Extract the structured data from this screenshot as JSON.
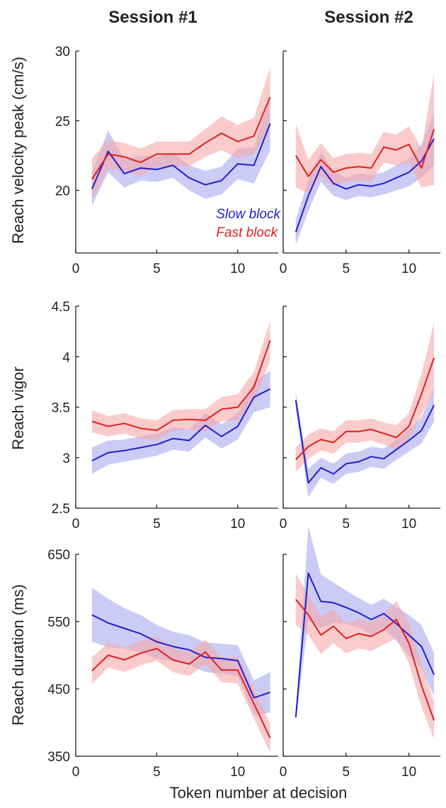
{
  "colors": {
    "slow": "#1f1fcc",
    "fast": "#e02020",
    "slow_band": "#a8a8f0",
    "fast_band": "#f6a8a8"
  },
  "headers": {
    "col1": "Session #1",
    "col2": "Session #2"
  },
  "xlabel": "Token number at decision",
  "legend": {
    "slow": "Slow block",
    "fast": "Fast block",
    "placement": "inside top-left panel, lower-right"
  },
  "chart_data": [
    {
      "type": "line",
      "title": "Session #1",
      "ylabel": "Reach velocity peak (cm/s)",
      "xlim": [
        0,
        12.5
      ],
      "xticks": [
        0,
        5,
        10
      ],
      "ylim": [
        15.5,
        30
      ],
      "yticks": [
        20,
        25,
        30
      ],
      "x": [
        1,
        2,
        3,
        4,
        5,
        6,
        7,
        8,
        9,
        10,
        11,
        12
      ],
      "series": [
        {
          "name": "Slow block",
          "values": [
            20.1,
            22.8,
            21.2,
            21.6,
            21.5,
            21.8,
            20.9,
            20.4,
            20.7,
            21.9,
            21.8,
            24.8
          ],
          "band": [
            1.2,
            1.5,
            1.0,
            0.9,
            0.9,
            0.9,
            0.9,
            1.0,
            1.0,
            1.1,
            1.3,
            1.9
          ]
        },
        {
          "name": "Fast block",
          "values": [
            20.8,
            22.6,
            22.4,
            22.0,
            22.6,
            22.6,
            22.6,
            23.4,
            24.1,
            23.5,
            23.9,
            26.7
          ],
          "band": [
            1.5,
            1.0,
            1.0,
            1.0,
            0.9,
            0.9,
            0.9,
            1.0,
            1.2,
            1.2,
            1.3,
            2.1
          ]
        }
      ]
    },
    {
      "type": "line",
      "title": "Session #2",
      "ylabel": "",
      "xlim": [
        0,
        12.5
      ],
      "xticks": [
        0,
        5,
        10
      ],
      "ylim": [
        15.5,
        30
      ],
      "yticks": [],
      "x": [
        1,
        2,
        3,
        4,
        5,
        6,
        7,
        8,
        9,
        10,
        11,
        12
      ],
      "series": [
        {
          "name": "Slow block",
          "values": [
            17.0,
            19.6,
            21.7,
            20.5,
            20.1,
            20.4,
            20.3,
            20.5,
            20.9,
            21.3,
            22.1,
            23.7
          ],
          "band": [
            0.9,
            1.1,
            1.1,
            0.9,
            0.8,
            0.8,
            0.8,
            0.8,
            0.9,
            1.0,
            1.2,
            1.9
          ]
        },
        {
          "name": "Fast block",
          "values": [
            22.5,
            21.0,
            22.2,
            21.3,
            21.6,
            21.7,
            21.6,
            23.1,
            22.9,
            23.3,
            21.6,
            24.4
          ],
          "band": [
            2.3,
            1.2,
            1.2,
            1.0,
            1.0,
            1.0,
            1.0,
            1.1,
            1.1,
            1.3,
            1.4,
            4.0
          ]
        }
      ]
    },
    {
      "type": "line",
      "title": "",
      "ylabel": "Reach vigor",
      "xlim": [
        0,
        12.5
      ],
      "xticks": [
        0,
        5,
        10
      ],
      "ylim": [
        2.5,
        4.5
      ],
      "yticks": [
        2.5,
        3,
        3.5,
        4,
        4.5
      ],
      "x": [
        1,
        2,
        3,
        4,
        5,
        6,
        7,
        8,
        9,
        10,
        11,
        12
      ],
      "series": [
        {
          "name": "Slow block",
          "values": [
            2.97,
            3.05,
            3.07,
            3.1,
            3.13,
            3.19,
            3.17,
            3.32,
            3.21,
            3.31,
            3.6,
            3.68
          ],
          "band": [
            0.13,
            0.12,
            0.11,
            0.11,
            0.11,
            0.11,
            0.11,
            0.12,
            0.12,
            0.13,
            0.15,
            0.18
          ]
        },
        {
          "name": "Fast block",
          "values": [
            3.36,
            3.31,
            3.34,
            3.29,
            3.27,
            3.37,
            3.38,
            3.37,
            3.48,
            3.5,
            3.7,
            4.16
          ],
          "band": [
            0.11,
            0.1,
            0.1,
            0.1,
            0.1,
            0.1,
            0.1,
            0.11,
            0.12,
            0.13,
            0.15,
            0.2
          ]
        }
      ]
    },
    {
      "type": "line",
      "title": "",
      "ylabel": "",
      "xlim": [
        0,
        12.5
      ],
      "xticks": [
        0,
        5,
        10
      ],
      "ylim": [
        2.5,
        4.5
      ],
      "yticks": [],
      "x": [
        1,
        2,
        3,
        4,
        5,
        6,
        7,
        8,
        9,
        10,
        11,
        12
      ],
      "series": [
        {
          "name": "Slow block",
          "values": [
            3.57,
            2.75,
            2.9,
            2.84,
            2.94,
            2.96,
            3.01,
            2.99,
            3.08,
            3.17,
            3.27,
            3.52
          ],
          "band": [
            0.08,
            0.14,
            0.1,
            0.1,
            0.1,
            0.1,
            0.1,
            0.1,
            0.1,
            0.11,
            0.13,
            0.16
          ]
        },
        {
          "name": "Fast block",
          "values": [
            2.98,
            3.11,
            3.18,
            3.15,
            3.26,
            3.26,
            3.28,
            3.24,
            3.2,
            3.31,
            3.63,
            3.99
          ],
          "band": [
            0.12,
            0.12,
            0.11,
            0.11,
            0.11,
            0.11,
            0.11,
            0.11,
            0.12,
            0.13,
            0.2,
            0.35
          ]
        }
      ]
    },
    {
      "type": "line",
      "title": "",
      "ylabel": "Reach duration (ms)",
      "xlim": [
        0,
        12.5
      ],
      "xticks": [
        0,
        5,
        10
      ],
      "ylim": [
        350,
        650
      ],
      "yticks": [
        350,
        450,
        550,
        650
      ],
      "x": [
        1,
        2,
        3,
        4,
        5,
        6,
        7,
        8,
        9,
        10,
        11,
        12
      ],
      "series": [
        {
          "name": "Slow block",
          "values": [
            560,
            548,
            540,
            532,
            520,
            513,
            508,
            497,
            495,
            492,
            437,
            445
          ],
          "band": [
            40,
            36,
            30,
            28,
            25,
            22,
            22,
            22,
            22,
            23,
            26,
            30
          ]
        },
        {
          "name": "Fast block",
          "values": [
            477,
            500,
            493,
            503,
            510,
            493,
            487,
            505,
            478,
            478,
            428,
            377
          ],
          "band": [
            20,
            18,
            18,
            18,
            18,
            18,
            18,
            18,
            18,
            20,
            22,
            22
          ]
        }
      ]
    },
    {
      "type": "line",
      "title": "",
      "ylabel": "",
      "xlim": [
        0,
        12.5
      ],
      "xticks": [
        0,
        5,
        10
      ],
      "ylim": [
        350,
        650
      ],
      "yticks": [],
      "x": [
        1,
        2,
        3,
        4,
        5,
        6,
        7,
        8,
        9,
        10,
        11,
        12
      ],
      "series": [
        {
          "name": "Slow block",
          "values": [
            408,
            622,
            580,
            578,
            571,
            563,
            553,
            562,
            547,
            530,
            513,
            471
          ],
          "band": [
            8,
            70,
            40,
            30,
            25,
            22,
            22,
            22,
            25,
            30,
            32,
            32
          ]
        },
        {
          "name": "Fast block",
          "values": [
            583,
            560,
            530,
            543,
            525,
            532,
            528,
            538,
            553,
            518,
            455,
            403
          ],
          "band": [
            38,
            30,
            28,
            25,
            22,
            22,
            22,
            22,
            28,
            30,
            32,
            28
          ]
        }
      ]
    }
  ]
}
